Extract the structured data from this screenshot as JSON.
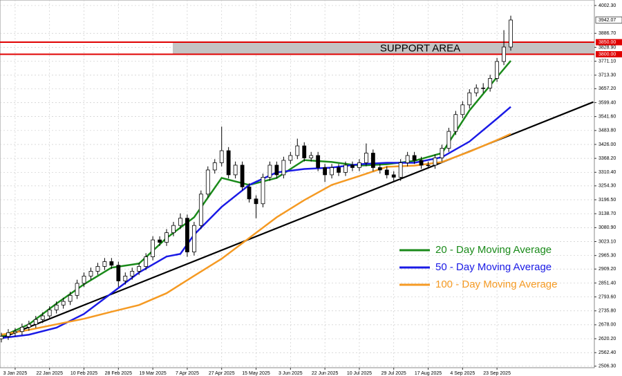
{
  "chart_data": {
    "type": "candlestick",
    "categories": [
      null,
      null,
      "3 Jan 2025",
      null,
      null,
      null,
      null,
      "22 Jan 2025",
      null,
      null,
      null,
      null,
      "10 Feb 2025",
      null,
      null,
      null,
      null,
      "28 Feb 2025",
      null,
      null,
      null,
      null,
      "19 Mar 2025",
      null,
      null,
      null,
      null,
      "7 Apr 2025",
      null,
      null,
      null,
      null,
      "27 Apr 2025",
      null,
      null,
      null,
      null,
      "15 May 2025",
      null,
      null,
      null,
      null,
      "3 Jun 2025",
      null,
      null,
      null,
      null,
      "22 Jun 2025",
      null,
      null,
      null,
      null,
      "10 Jul 2025",
      null,
      null,
      null,
      null,
      "29 Jul 2025",
      null,
      null,
      null,
      null,
      "17 Aug 2025",
      null,
      null,
      null,
      null,
      "4 Sep 2025",
      null,
      null,
      null,
      null,
      "23 Sep 2025",
      null,
      null
    ],
    "open": [
      2620,
      2630,
      2645,
      2650,
      2668,
      2680,
      2700,
      2715,
      2740,
      2760,
      2775,
      2800,
      2850,
      2880,
      2900,
      2920,
      2940,
      2925,
      2860,
      2880,
      2900,
      2920,
      2960,
      3030,
      3020,
      3060,
      3090,
      3120,
      2980,
      3090,
      3220,
      3320,
      3350,
      3400,
      3300,
      3340,
      3250,
      3200,
      3180,
      3290,
      3340,
      3300,
      3360,
      3380,
      3420,
      3370,
      3380,
      3330,
      3300,
      3330,
      3310,
      3340,
      3330,
      3350,
      3390,
      3330,
      3320,
      3300,
      3290,
      3350,
      3380,
      3360,
      3340,
      3340,
      3370,
      3410,
      3480,
      3550,
      3590,
      3640,
      3660,
      3660,
      3700,
      3770,
      3830
    ],
    "high": [
      2645,
      2660,
      2665,
      2683,
      2695,
      2715,
      2730,
      2755,
      2775,
      2790,
      2815,
      2865,
      2895,
      2915,
      2935,
      2955,
      2955,
      2940,
      2895,
      2915,
      2935,
      2975,
      3045,
      3045,
      3075,
      3105,
      3140,
      3135,
      3105,
      3235,
      3335,
      3365,
      3500,
      3415,
      3355,
      3355,
      3265,
      3215,
      3305,
      3355,
      3355,
      3375,
      3395,
      3450,
      3435,
      3395,
      3395,
      3345,
      3345,
      3345,
      3355,
      3355,
      3365,
      3430,
      3405,
      3345,
      3335,
      3315,
      3365,
      3395,
      3395,
      3375,
      3355,
      3385,
      3425,
      3495,
      3565,
      3605,
      3655,
      3675,
      3680,
      3715,
      3785,
      3900,
      3960
    ],
    "low": [
      2605,
      2615,
      2630,
      2635,
      2653,
      2665,
      2685,
      2700,
      2725,
      2745,
      2760,
      2785,
      2835,
      2865,
      2885,
      2905,
      2910,
      2835,
      2845,
      2865,
      2885,
      2905,
      2945,
      3005,
      3005,
      3045,
      3075,
      2960,
      2965,
      3075,
      3205,
      3305,
      3335,
      3285,
      3285,
      3235,
      3185,
      3120,
      3165,
      3275,
      3285,
      3285,
      3345,
      3365,
      3355,
      3355,
      3315,
      3270,
      3285,
      3295,
      3295,
      3315,
      3315,
      3335,
      3315,
      3305,
      3285,
      3270,
      3275,
      3335,
      3345,
      3325,
      3325,
      3325,
      3355,
      3395,
      3465,
      3535,
      3575,
      3625,
      3640,
      3645,
      3685,
      3755,
      3815
    ],
    "close": [
      2630,
      2645,
      2650,
      2668,
      2680,
      2700,
      2715,
      2740,
      2760,
      2775,
      2800,
      2850,
      2880,
      2900,
      2920,
      2940,
      2925,
      2860,
      2880,
      2900,
      2920,
      2960,
      3030,
      3020,
      3060,
      3090,
      3120,
      2980,
      3090,
      3220,
      3320,
      3350,
      3400,
      3300,
      3340,
      3250,
      3200,
      3180,
      3290,
      3340,
      3300,
      3360,
      3380,
      3420,
      3370,
      3380,
      3330,
      3300,
      3330,
      3310,
      3340,
      3330,
      3350,
      3390,
      3330,
      3320,
      3300,
      3290,
      3350,
      3380,
      3360,
      3340,
      3340,
      3370,
      3410,
      3480,
      3550,
      3590,
      3640,
      3660,
      3660,
      3700,
      3770,
      3830,
      3942
    ],
    "series": [
      {
        "name": "20 - Day Moving Average",
        "color": "#1a8a1a",
        "x": [
          0,
          4,
          8,
          12,
          16,
          20,
          24,
          28,
          32,
          36,
          40,
          44,
          48,
          52,
          56,
          60,
          64,
          68,
          72,
          74
        ],
        "values": [
          2629,
          2680,
          2766,
          2846,
          2915,
          2932,
          3038,
          3124,
          3287,
          3258,
          3287,
          3361,
          3353,
          3338,
          3344,
          3358,
          3390,
          3567,
          3705,
          3773
        ]
      },
      {
        "name": "50 - Day Moving Average",
        "color": "#1a1ae6",
        "x": [
          0,
          4,
          8,
          12,
          16,
          20,
          24,
          26,
          28,
          32,
          36,
          40,
          44,
          48,
          52,
          56,
          60,
          64,
          68,
          72,
          74
        ],
        "values": [
          2623,
          2637,
          2666,
          2723,
          2809,
          2895,
          2961,
          2972,
          3052,
          3167,
          3258,
          3310,
          3324,
          3330,
          3344,
          3350,
          3350,
          3373,
          3438,
          3533,
          3582
        ]
      },
      {
        "name": "100 - Day Moving Average",
        "color": "#f59a23",
        "x": [
          0,
          4,
          8,
          12,
          16,
          20,
          24,
          28,
          32,
          36,
          40,
          44,
          48,
          52,
          56,
          60,
          64,
          68,
          72,
          74
        ],
        "values": [
          2637,
          2657,
          2680,
          2703,
          2732,
          2760,
          2809,
          2881,
          2952,
          3038,
          3124,
          3195,
          3258,
          3295,
          3333,
          3338,
          3353,
          3396,
          3444,
          3470
        ]
      }
    ],
    "trendline": {
      "color": "#000000",
      "x": [
        0,
        86
      ],
      "values": [
        2623,
        3602
      ]
    },
    "support_area": {
      "label": "SUPPORT AREA",
      "color": "#e00000",
      "bounds": [
        {
          "value": 3850,
          "label": "3850.00"
        },
        {
          "value": 3800,
          "label": "3800.00"
        }
      ]
    },
    "last_price": {
      "value": 3942.07,
      "label": "3942.07"
    },
    "ylim": [
      2500,
      4025
    ],
    "yticks": [
      {
        "value": 4002.3,
        "label": "4002.30"
      },
      {
        "value": 3886.7,
        "label": "3886.70"
      },
      {
        "value": 3828.9,
        "label": "3828.90"
      },
      {
        "value": 3771.1,
        "label": "3771.10"
      },
      {
        "value": 3713.3,
        "label": "3713.30"
      },
      {
        "value": 3657.2,
        "label": "3657.20"
      },
      {
        "value": 3599.4,
        "label": "3599.40"
      },
      {
        "value": 3541.6,
        "label": "3541.60"
      },
      {
        "value": 3483.8,
        "label": "3483.80"
      },
      {
        "value": 3426,
        "label": "3426.00"
      },
      {
        "value": 3368.2,
        "label": "3368.20"
      },
      {
        "value": 3310.4,
        "label": "3310.40"
      },
      {
        "value": 3254.3,
        "label": "3254.30"
      },
      {
        "value": 3196.5,
        "label": "3196.50"
      },
      {
        "value": 3138.7,
        "label": "3138.70"
      },
      {
        "value": 3080.9,
        "label": "3080.90"
      },
      {
        "value": 3023.1,
        "label": "3023.10"
      },
      {
        "value": 2965.3,
        "label": "2965.30"
      },
      {
        "value": 2909.2,
        "label": "2909.20"
      },
      {
        "value": 2851.4,
        "label": "2851.40"
      },
      {
        "value": 2793.6,
        "label": "2793.60"
      },
      {
        "value": 2735.8,
        "label": "2735.80"
      },
      {
        "value": 2678,
        "label": "2678.00"
      },
      {
        "value": 2620.2,
        "label": "2620.20"
      },
      {
        "value": 2562.4,
        "label": "2562.40"
      },
      {
        "value": 2506.3,
        "label": "2506.30"
      }
    ],
    "grid": true,
    "legend": "lower right"
  }
}
